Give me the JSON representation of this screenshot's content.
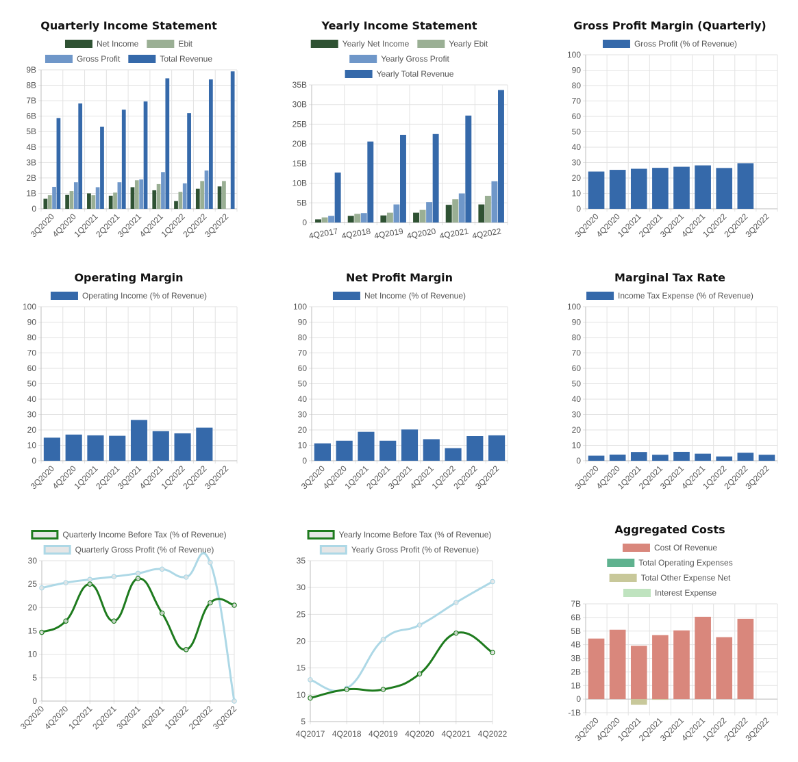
{
  "chart_data": [
    {
      "id": "quarterly-income",
      "type": "bar",
      "title": "Quarterly Income Statement",
      "categories": [
        "3Q2020",
        "4Q2020",
        "1Q2021",
        "2Q2021",
        "3Q2021",
        "4Q2021",
        "1Q2022",
        "2Q2022",
        "3Q2022"
      ],
      "series": [
        {
          "name": "Net Income",
          "color": "#2f5233",
          "values": [
            0.65,
            0.9,
            1.0,
            0.85,
            1.4,
            1.2,
            0.5,
            1.3,
            1.45
          ]
        },
        {
          "name": "Ebit",
          "color": "#9aaf94",
          "values": [
            0.88,
            1.15,
            0.88,
            1.05,
            1.85,
            1.6,
            1.1,
            1.8,
            1.8
          ]
        },
        {
          "name": "Gross Profit",
          "color": "#6f97c9",
          "values": [
            1.42,
            1.72,
            1.4,
            1.72,
            1.9,
            2.38,
            1.65,
            2.48,
            0
          ]
        },
        {
          "name": "Total Revenue",
          "color": "#3569aa",
          "values": [
            5.88,
            6.82,
            5.32,
            6.42,
            6.95,
            8.45,
            6.2,
            8.38,
            8.9
          ]
        }
      ],
      "yticks": [
        "0",
        "1B",
        "2B",
        "3B",
        "4B",
        "5B",
        "6B",
        "7B",
        "8B",
        "9B"
      ],
      "ylim": [
        0,
        9
      ]
    },
    {
      "id": "yearly-income",
      "type": "bar",
      "title": "Yearly Income Statement",
      "categories": [
        "4Q2017",
        "4Q2018",
        "4Q2019",
        "4Q2020",
        "4Q2021",
        "4Q2022"
      ],
      "series": [
        {
          "name": "Yearly Net Income",
          "color": "#2f5233",
          "values": [
            0.8,
            1.7,
            1.8,
            2.5,
            4.5,
            4.6
          ]
        },
        {
          "name": "Yearly Ebit",
          "color": "#9aaf94",
          "values": [
            1.3,
            2.2,
            2.5,
            3.2,
            5.9,
            6.8
          ]
        },
        {
          "name": "Yearly Gross Profit",
          "color": "#6f97c9",
          "values": [
            1.7,
            2.4,
            4.6,
            5.2,
            7.4,
            10.5
          ]
        },
        {
          "name": "Yearly Total Revenue",
          "color": "#3569aa",
          "values": [
            12.7,
            20.6,
            22.3,
            22.5,
            27.2,
            33.7
          ]
        }
      ],
      "yticks": [
        "0",
        "5B",
        "10B",
        "15B",
        "20B",
        "25B",
        "30B",
        "35B"
      ],
      "ylim": [
        0,
        35
      ]
    },
    {
      "id": "gross-margin",
      "type": "bar",
      "title": "Gross Profit Margin (Quarterly)",
      "categories": [
        "3Q2020",
        "4Q2020",
        "1Q2021",
        "2Q2021",
        "3Q2021",
        "4Q2021",
        "1Q2022",
        "2Q2022",
        "3Q2022"
      ],
      "series": [
        {
          "name": "Gross Profit (% of Revenue)",
          "color": "#3569aa",
          "values": [
            24.2,
            25.3,
            26.0,
            26.6,
            27.3,
            28.2,
            26.5,
            29.6,
            0
          ]
        }
      ],
      "yticks": [
        "0",
        "10",
        "20",
        "30",
        "40",
        "50",
        "60",
        "70",
        "80",
        "90",
        "100"
      ],
      "ylim": [
        0,
        100
      ]
    },
    {
      "id": "operating-margin",
      "type": "bar",
      "title": "Operating Margin",
      "categories": [
        "3Q2020",
        "4Q2020",
        "1Q2021",
        "2Q2021",
        "3Q2021",
        "4Q2021",
        "1Q2022",
        "2Q2022",
        "3Q2022"
      ],
      "series": [
        {
          "name": "Operating Income (% of Revenue)",
          "color": "#3569aa",
          "values": [
            15.0,
            17.0,
            16.5,
            16.2,
            26.5,
            19.2,
            17.8,
            21.5,
            0
          ]
        }
      ],
      "yticks": [
        "0",
        "10",
        "20",
        "30",
        "40",
        "50",
        "60",
        "70",
        "80",
        "90",
        "100"
      ],
      "ylim": [
        0,
        100
      ]
    },
    {
      "id": "net-margin",
      "type": "bar",
      "title": "Net Profit Margin",
      "categories": [
        "3Q2020",
        "4Q2020",
        "1Q2021",
        "2Q2021",
        "3Q2021",
        "4Q2021",
        "1Q2022",
        "2Q2022",
        "3Q2022"
      ],
      "series": [
        {
          "name": "Net Income (% of Revenue)",
          "color": "#3569aa",
          "values": [
            11.3,
            13.0,
            18.8,
            13.0,
            20.3,
            14.0,
            8.2,
            16.0,
            16.5
          ]
        }
      ],
      "yticks": [
        "0",
        "10",
        "20",
        "30",
        "40",
        "50",
        "60",
        "70",
        "80",
        "90",
        "100"
      ],
      "ylim": [
        0,
        100
      ]
    },
    {
      "id": "tax-rate",
      "type": "bar",
      "title": "Marginal Tax Rate",
      "categories": [
        "3Q2020",
        "4Q2020",
        "1Q2021",
        "2Q2021",
        "3Q2021",
        "4Q2021",
        "1Q2022",
        "2Q2022",
        "3Q2022"
      ],
      "series": [
        {
          "name": "Income Tax Expense (% of Revenue)",
          "color": "#3569aa",
          "values": [
            3.3,
            4.0,
            5.7,
            3.9,
            5.8,
            4.6,
            2.8,
            5.2,
            3.9
          ]
        }
      ],
      "yticks": [
        "0",
        "10",
        "20",
        "30",
        "40",
        "50",
        "60",
        "70",
        "80",
        "90",
        "100"
      ],
      "ylim": [
        0,
        100
      ]
    },
    {
      "id": "quarterly-ibt",
      "type": "line",
      "title": "",
      "categories": [
        "3Q2020",
        "4Q2020",
        "1Q2021",
        "2Q2021",
        "3Q2021",
        "4Q2021",
        "1Q2022",
        "2Q2022",
        "3Q2022"
      ],
      "series": [
        {
          "name": "Quarterly Income Before Tax (% of Revenue)",
          "color": "#1e7b1e",
          "values": [
            14.7,
            17.1,
            25.0,
            17.1,
            26.2,
            18.8,
            11.0,
            21.0,
            20.5
          ]
        },
        {
          "name": "Quarterly Gross Profit (% of Revenue)",
          "color": "#add8e6",
          "values": [
            24.2,
            25.3,
            26.0,
            26.6,
            27.3,
            28.2,
            26.5,
            29.6,
            0
          ]
        }
      ],
      "yticks": [
        "0",
        "5",
        "10",
        "15",
        "20",
        "25",
        "30"
      ],
      "ylim": [
        0,
        30
      ]
    },
    {
      "id": "yearly-ibt",
      "type": "line",
      "title": "",
      "categories": [
        "4Q2017",
        "4Q2018",
        "4Q2019",
        "4Q2020",
        "4Q2021",
        "4Q2022"
      ],
      "series": [
        {
          "name": "Yearly Income Before Tax (% of Revenue)",
          "color": "#1e7b1e",
          "values": [
            9.4,
            11.0,
            11.0,
            13.9,
            21.5,
            17.9
          ]
        },
        {
          "name": "Yearly Gross Profit (% of Revenue)",
          "color": "#add8e6",
          "values": [
            12.8,
            11.2,
            20.3,
            23.0,
            27.2,
            31.1
          ]
        }
      ],
      "yticks": [
        "5",
        "10",
        "15",
        "20",
        "25",
        "30",
        "35"
      ],
      "ylim": [
        5,
        35
      ]
    },
    {
      "id": "aggregated-costs",
      "type": "bar",
      "title": "Aggregated Costs",
      "categories": [
        "3Q2020",
        "4Q2020",
        "1Q2021",
        "2Q2021",
        "3Q2021",
        "4Q2021",
        "1Q2022",
        "2Q2022",
        "3Q2022"
      ],
      "series": [
        {
          "name": "Cost Of Revenue",
          "color": "#d9877c",
          "values": [
            4.45,
            5.1,
            3.92,
            4.7,
            5.05,
            6.05,
            4.55,
            5.9,
            0
          ]
        },
        {
          "name": "Total Operating Expenses",
          "color": "#5fb28f",
          "values": [
            0,
            0,
            0,
            0,
            0,
            0,
            0,
            0,
            0
          ]
        },
        {
          "name": "Total Other Expense Net",
          "color": "#c8c89a",
          "values": [
            0,
            0,
            -0.42,
            -0.05,
            0,
            0,
            0,
            0,
            0
          ]
        },
        {
          "name": "Interest Expense",
          "color": "#bfe3bf",
          "values": [
            0,
            0,
            0,
            0,
            0,
            0,
            0,
            0,
            0
          ]
        }
      ],
      "yticks": [
        "-1B",
        "0",
        "1B",
        "2B",
        "3B",
        "4B",
        "5B",
        "6B",
        "7B"
      ],
      "ylim": [
        -1,
        7
      ]
    }
  ]
}
